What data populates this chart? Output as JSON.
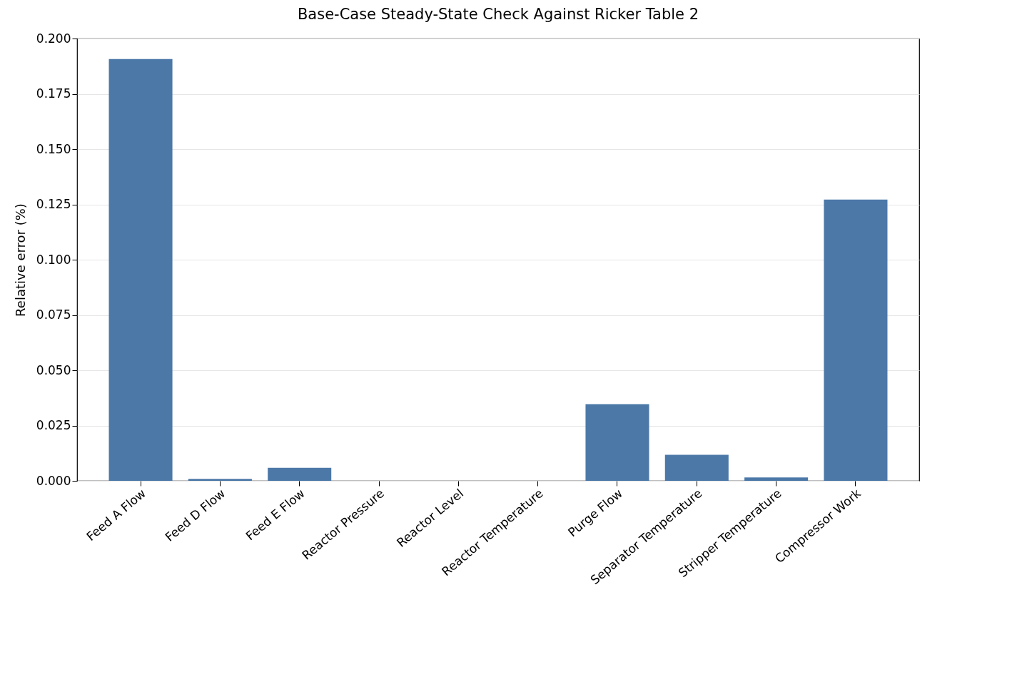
{
  "chart_data": {
    "type": "bar",
    "title": "Base-Case Steady-State Check Against Ricker Table 2",
    "ylabel": "Relative error (%)",
    "categories": [
      "Feed A Flow",
      "Feed D Flow",
      "Feed E Flow",
      "Reactor Pressure",
      "Reactor Level",
      "Reactor Temperature",
      "Purge Flow",
      "Separator Temperature",
      "Stripper Temperature",
      "Compressor Work"
    ],
    "values": [
      0.1907,
      0.0009,
      0.0059,
      0,
      0,
      0,
      0.0347,
      0.0118,
      0.0015,
      0.1272
    ],
    "color": "#4c78a8",
    "ylim": [
      0,
      0.2
    ],
    "yticks": [
      {
        "value": 0,
        "label": "0.000"
      },
      {
        "value": 0.025,
        "label": "0.025"
      },
      {
        "value": 0.05,
        "label": "0.050"
      },
      {
        "value": 0.075,
        "label": "0.075"
      },
      {
        "value": 0.1,
        "label": "0.100"
      },
      {
        "value": 0.125,
        "label": "0.125"
      },
      {
        "value": 0.15,
        "label": "0.150"
      },
      {
        "value": 0.175,
        "label": "0.175"
      },
      {
        "value": 0.2,
        "label": "0.200"
      }
    ],
    "grid": "y"
  }
}
